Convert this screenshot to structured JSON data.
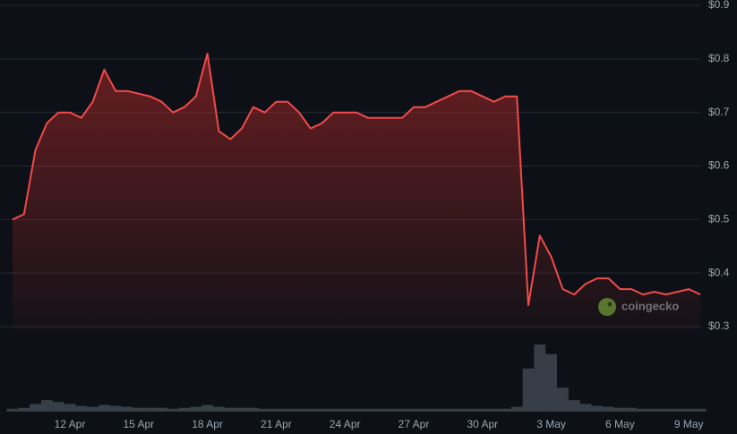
{
  "chart_data": {
    "type": "line",
    "categories": [
      null,
      null,
      null,
      null,
      null,
      "12 Apr",
      null,
      null,
      null,
      null,
      null,
      "15 Apr",
      null,
      null,
      null,
      null,
      null,
      "18 Apr",
      null,
      null,
      null,
      null,
      null,
      "21 Apr",
      null,
      null,
      null,
      null,
      null,
      "24 Apr",
      null,
      null,
      null,
      null,
      null,
      "27 Apr",
      null,
      null,
      null,
      null,
      null,
      "30 Apr",
      null,
      null,
      null,
      null,
      null,
      "3 May",
      null,
      null,
      null,
      null,
      null,
      "6 May",
      null,
      null,
      null,
      null,
      null,
      "9 May",
      null
    ],
    "values": [
      0.5,
      0.51,
      0.63,
      0.68,
      0.7,
      0.7,
      0.69,
      0.72,
      0.78,
      0.74,
      0.74,
      0.735,
      0.73,
      0.72,
      0.7,
      0.71,
      0.73,
      0.81,
      0.665,
      0.65,
      0.67,
      0.71,
      0.7,
      0.72,
      0.72,
      0.7,
      0.67,
      0.68,
      0.7,
      0.7,
      0.7,
      0.69,
      0.69,
      0.69,
      0.69,
      0.71,
      0.71,
      0.72,
      0.73,
      0.74,
      0.74,
      0.73,
      0.72,
      0.73,
      0.73,
      0.34,
      0.47,
      0.43,
      0.37,
      0.36,
      0.38,
      0.39,
      0.39,
      0.37,
      0.37,
      0.36,
      0.365,
      0.36,
      0.365,
      0.37,
      0.36
    ],
    "volume": [
      3,
      4,
      8,
      12,
      10,
      8,
      6,
      5,
      7,
      6,
      5,
      4,
      4,
      4,
      3,
      4,
      5,
      7,
      5,
      4,
      4,
      4,
      3,
      3,
      3,
      3,
      3,
      3,
      3,
      3,
      3,
      3,
      3,
      3,
      3,
      3,
      3,
      3,
      3,
      3,
      3,
      3,
      3,
      3,
      5,
      45,
      70,
      60,
      25,
      12,
      8,
      6,
      5,
      4,
      4,
      3,
      3,
      3,
      3,
      3,
      3
    ],
    "color": "#f24a4a",
    "ylim": [
      0.3,
      0.9
    ],
    "yticks": [
      {
        "value": 0.3,
        "label": "$0.3"
      },
      {
        "value": 0.4,
        "label": "$0.4"
      },
      {
        "value": 0.5,
        "label": "$0.5"
      },
      {
        "value": 0.6,
        "label": "$0.6"
      },
      {
        "value": 0.7,
        "label": "$0.7"
      },
      {
        "value": 0.8,
        "label": "$0.8"
      },
      {
        "value": 0.9,
        "label": "$0.9"
      }
    ],
    "grid": true,
    "watermark": "coingecko"
  }
}
